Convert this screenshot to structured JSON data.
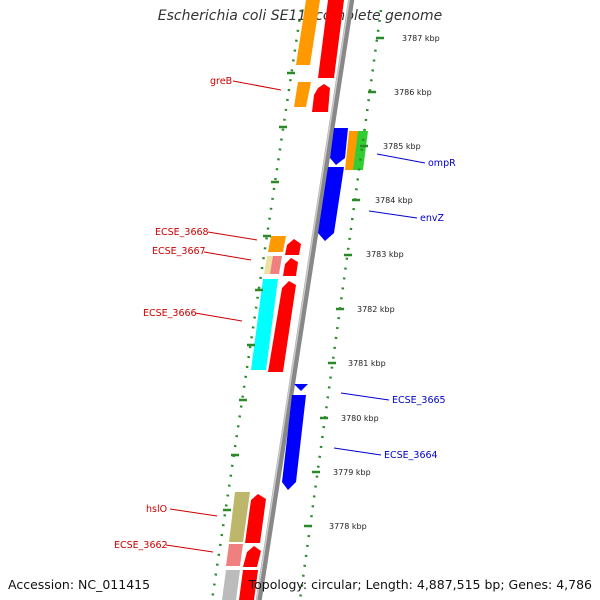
{
  "title": "Escherichia coli SE11, complete genome",
  "footer": {
    "accession": "Accession: NC_011415",
    "topology": "Topology: circular; Length: 4,887,515 bp; Genes: 4,786"
  },
  "colors": {
    "backbone": "#888888",
    "backbone_highlight": "#cccccc",
    "tick": "#2a8a2a",
    "label_forward": "#cc0000",
    "label_reverse": "#0000cc"
  },
  "scale_labels": [
    "3787 kbp",
    "3786 kbp",
    "3785 kbp",
    "3784 kbp",
    "3783 kbp",
    "3782 kbp",
    "3781 kbp",
    "3780 kbp",
    "3779 kbp",
    "3778 kbp"
  ],
  "gene_labels": {
    "forward": [
      "greB",
      "ECSE_3668",
      "ECSE_3667",
      "ECSE_3666",
      "hslO",
      "ECSE_3662"
    ],
    "reverse": [
      "ompR",
      "envZ",
      "ECSE_3665",
      "ECSE_3664"
    ]
  }
}
